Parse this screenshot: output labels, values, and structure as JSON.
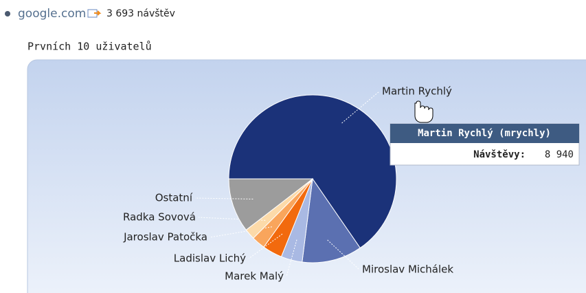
{
  "header": {
    "site": "google.com",
    "visits": "3 693 návštěv"
  },
  "chart_data": {
    "type": "pie",
    "title": "Prvních 10 uživatelů",
    "categories": [
      "Martin Rychlý",
      "Miroslav Michálek",
      "Marek Malý",
      "Ladislav Lichý",
      "Jaroslav Patočka",
      "Radka Sovová",
      "Ostatní"
    ],
    "values": [
      8940,
      1585,
      560,
      520,
      355,
      285,
      1425
    ],
    "colors": [
      "#1b3279",
      "#5b70b1",
      "#a9b9e3",
      "#f26a0e",
      "#f9a55c",
      "#fcdaa9",
      "#9c9c9c"
    ],
    "tooltip": {
      "title": "Martin Rychlý (mrychly)",
      "label": "Návštěvy:",
      "value_label": "8 940"
    }
  }
}
